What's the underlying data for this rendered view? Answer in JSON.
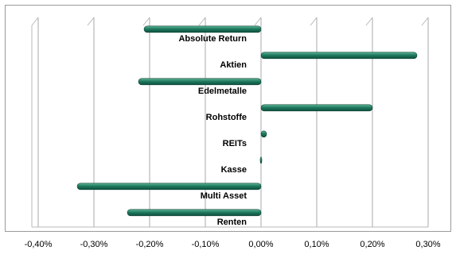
{
  "chart_data": {
    "type": "bar",
    "orientation": "horizontal",
    "title": "",
    "xlabel": "",
    "ylabel": "",
    "categories": [
      "Absolute Return",
      "Aktien",
      "Edelmetalle",
      "Rohstoffe",
      "REITs",
      "Kasse",
      "Multi Asset",
      "Renten"
    ],
    "values": [
      -0.21,
      0.28,
      -0.22,
      0.2,
      0.01,
      0.0,
      -0.33,
      -0.24
    ],
    "xlim": [
      -0.4,
      0.3
    ],
    "x_ticks": [
      "-0,40%",
      "-0,30%",
      "-0,20%",
      "-0,10%",
      "0,00%",
      "0,10%",
      "0,20%",
      "0,30%"
    ],
    "grid": "vertical",
    "bar_color": "#1e7a5f",
    "legend": "none"
  }
}
